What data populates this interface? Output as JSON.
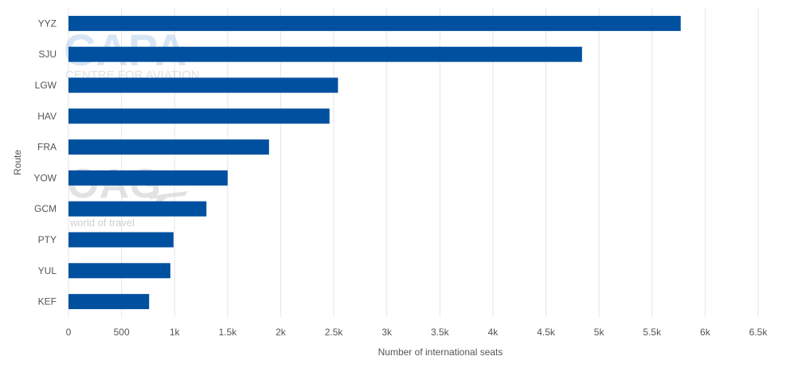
{
  "chart_data": {
    "type": "bar",
    "orientation": "horizontal",
    "categories": [
      "YYZ",
      "SJU",
      "LGW",
      "HAV",
      "FRA",
      "YOW",
      "GCM",
      "PTY",
      "YUL",
      "KEF"
    ],
    "series": [
      {
        "values": [
          5770,
          4840,
          2540,
          2460,
          1890,
          1500,
          1300,
          990,
          960,
          760
        ]
      }
    ],
    "xlabel": "Number of international seats",
    "ylabel": "Route",
    "xlim": [
      0,
      6500
    ],
    "xticks": [
      0,
      500,
      1000,
      1500,
      2000,
      2500,
      3000,
      3500,
      4000,
      4500,
      5000,
      5500,
      6000,
      6500
    ],
    "xtick_labels": [
      "0",
      "500",
      "1k",
      "1.5k",
      "2k",
      "2.5k",
      "3k",
      "3.5k",
      "4k",
      "4.5k",
      "5k",
      "5.5k",
      "6k",
      "6.5k"
    ],
    "grid": true,
    "bar_color": "#0050a0",
    "grid_color": "#e6e6e6"
  },
  "watermarks": {
    "capa_logo_text": "CAPA",
    "capa_tagline": "CENTRE FOR AVIATION",
    "oag_logo_text": "OAG",
    "oag_tagline": "world of travel"
  }
}
